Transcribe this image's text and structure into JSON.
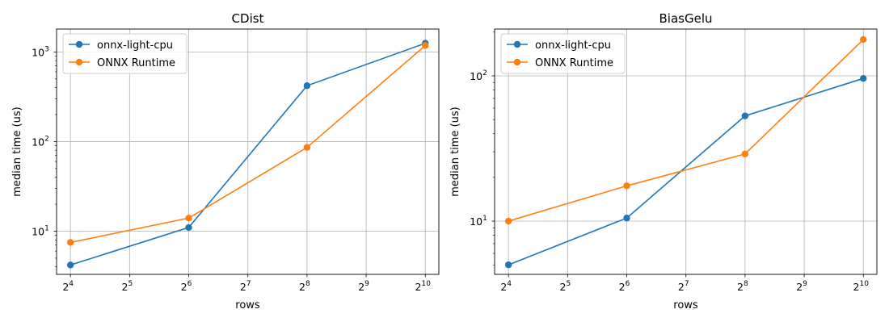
{
  "chart_data": [
    {
      "type": "line",
      "title": "CDist",
      "xlabel": "rows",
      "ylabel": "median time (us)",
      "xscale": "log2",
      "yscale": "log10",
      "xlim": [
        13.6,
        1200
      ],
      "ylim": [
        3.3,
        1800
      ],
      "x": [
        16,
        64,
        256,
        1024
      ],
      "xticks": [
        {
          "base": "2",
          "exp": "4",
          "v": 16
        },
        {
          "base": "2",
          "exp": "5",
          "v": 32
        },
        {
          "base": "2",
          "exp": "6",
          "v": 64
        },
        {
          "base": "2",
          "exp": "7",
          "v": 128
        },
        {
          "base": "2",
          "exp": "8",
          "v": 256
        },
        {
          "base": "2",
          "exp": "9",
          "v": 512
        },
        {
          "base": "2",
          "exp": "10",
          "v": 1024
        }
      ],
      "yticks": [
        {
          "base": "10",
          "exp": "1",
          "v": 10
        },
        {
          "base": "10",
          "exp": "2",
          "v": 100
        },
        {
          "base": "10",
          "exp": "3",
          "v": 1000
        }
      ],
      "grid": true,
      "legend_position": "top-left",
      "series": [
        {
          "name": "onnx-light-cpu",
          "color": "#1f77b4",
          "values": [
            4.2,
            11,
            420,
            1250
          ]
        },
        {
          "name": "ONNX Runtime",
          "color": "#ff7f0e",
          "values": [
            7.5,
            14,
            86,
            1180
          ]
        }
      ]
    },
    {
      "type": "line",
      "title": "BiasGelu",
      "xlabel": "rows",
      "ylabel": "median time (us)",
      "xscale": "log2",
      "yscale": "log10",
      "xlim": [
        13.6,
        1200
      ],
      "ylim": [
        4.3,
        210
      ],
      "x": [
        16,
        64,
        256,
        1024
      ],
      "xticks": [
        {
          "base": "2",
          "exp": "4",
          "v": 16
        },
        {
          "base": "2",
          "exp": "5",
          "v": 32
        },
        {
          "base": "2",
          "exp": "6",
          "v": 64
        },
        {
          "base": "2",
          "exp": "7",
          "v": 128
        },
        {
          "base": "2",
          "exp": "8",
          "v": 256
        },
        {
          "base": "2",
          "exp": "9",
          "v": 512
        },
        {
          "base": "2",
          "exp": "10",
          "v": 1024
        }
      ],
      "yticks": [
        {
          "base": "10",
          "exp": "1",
          "v": 10
        },
        {
          "base": "10",
          "exp": "2",
          "v": 100
        }
      ],
      "grid": true,
      "legend_position": "top-left",
      "series": [
        {
          "name": "onnx-light-cpu",
          "color": "#1f77b4",
          "values": [
            5,
            10.5,
            53,
            96
          ]
        },
        {
          "name": "ONNX Runtime",
          "color": "#ff7f0e",
          "values": [
            10,
            17.5,
            29,
            178
          ]
        }
      ]
    }
  ]
}
